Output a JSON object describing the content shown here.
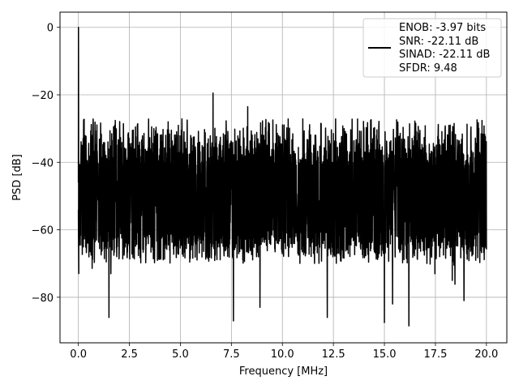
{
  "chart_data": {
    "type": "line",
    "title": "",
    "xlabel": "Frequency [MHz]",
    "ylabel": "PSD [dB]",
    "xlim": [
      -0.9,
      21.0
    ],
    "ylim": [
      -93.5,
      4.5
    ],
    "x_ticks": [
      0.0,
      2.5,
      5.0,
      7.5,
      10.0,
      12.5,
      15.0,
      17.5,
      20.0
    ],
    "x_tick_labels": [
      "0.0",
      "2.5",
      "5.0",
      "7.5",
      "10.0",
      "12.5",
      "15.0",
      "17.5",
      "20.0"
    ],
    "y_ticks": [
      0,
      -20,
      -40,
      -60,
      -80
    ],
    "y_tick_labels": [
      "0",
      "−20",
      "−40",
      "−60",
      "−80"
    ],
    "grid": true,
    "legend_position": "top-right",
    "series": [
      {
        "color": "#000000",
        "description_values": {
          "x_range": [
            0.0,
            20.0
          ],
          "upper_envelope_db": -27,
          "lower_envelope_db": -70,
          "dc_peak": {
            "x": 0.0,
            "y": 0.0
          },
          "notable_spikes": [
            {
              "x": 6.6,
              "y": -19.5
            },
            {
              "x": 8.3,
              "y": -23.5
            }
          ],
          "notable_dips": [
            {
              "x": 1.5,
              "y": -86
            },
            {
              "x": 7.6,
              "y": -87
            },
            {
              "x": 8.9,
              "y": -83
            },
            {
              "x": 12.2,
              "y": -86
            },
            {
              "x": 15.0,
              "y": -87.5
            },
            {
              "x": 15.4,
              "y": -82
            },
            {
              "x": 16.2,
              "y": -88.5
            },
            {
              "x": 18.9,
              "y": -81
            }
          ]
        }
      }
    ],
    "legend": {
      "lines": [
        "ENOB: -3.97 bits",
        "SNR: -22.11 dB",
        "SINAD: -22.11 dB",
        "SFDR: 9.48"
      ]
    }
  }
}
